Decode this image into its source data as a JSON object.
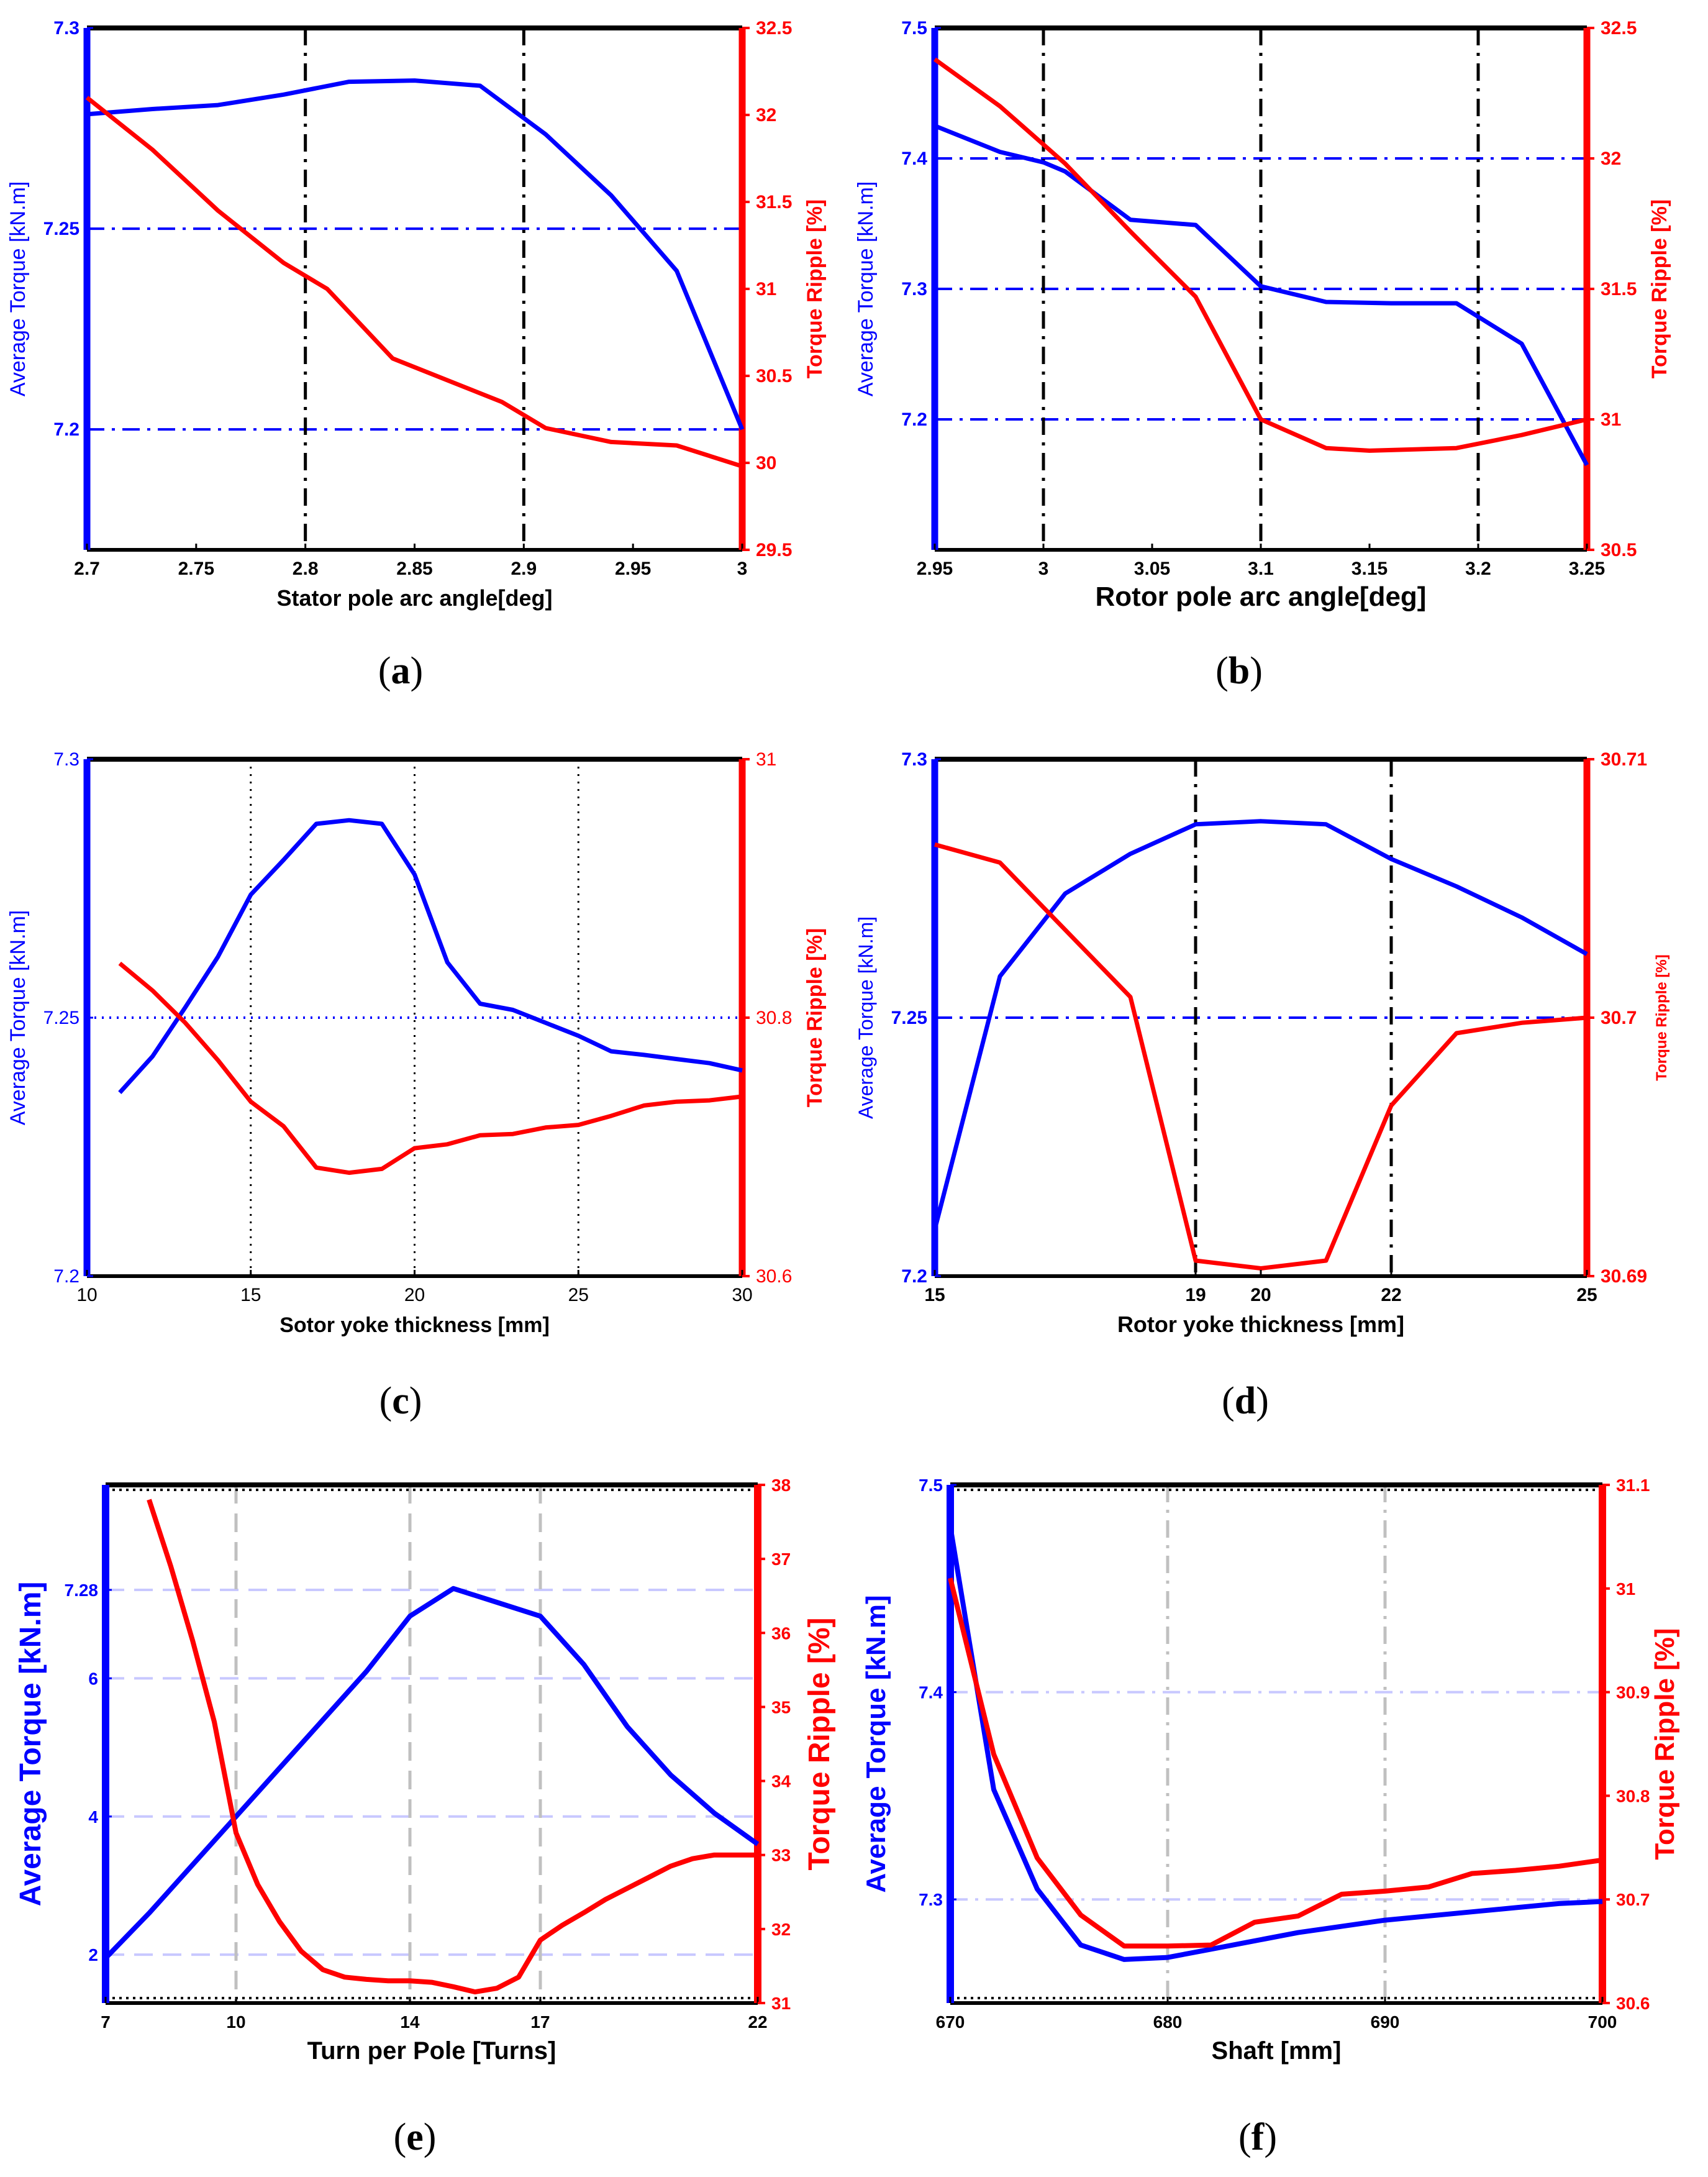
{
  "colors": {
    "left": "#0000ff",
    "right": "#ff0000",
    "frame": "#000000",
    "light": "#c8c8ff",
    "lightgray": "#c0c0c0"
  },
  "chart_data": [
    {
      "type": "line",
      "panel": "(a)",
      "xlabel": "Stator pole arc angle[deg]",
      "ylabel_left": "Average Torque [kN.m]",
      "ylabel_right": "Torque Ripple [%]",
      "xlim": [
        2.7,
        3
      ],
      "ylim_left": [
        7.17,
        7.3
      ],
      "ylim_right": [
        29.5,
        32.5
      ],
      "xticks": [
        2.7,
        2.75,
        2.8,
        2.85,
        2.9,
        2.95,
        3
      ],
      "xtick_labels": [
        "2.7",
        "2.75",
        "2.8",
        "2.85",
        "2.9",
        "2.95",
        "3"
      ],
      "yticks_left": [
        7.2,
        7.25,
        7.3
      ],
      "ytick_labels_left": [
        "7.2",
        "7.25",
        "7.3"
      ],
      "yticks_right": [
        29.5,
        30,
        30.5,
        31,
        31.5,
        32,
        32.5
      ],
      "ytick_labels_right": [
        "29.5",
        "30",
        "30.5",
        "31",
        "31.5",
        "32",
        "32.5"
      ],
      "vlines": [
        2.8,
        2.9
      ],
      "vline_style": "dashdot-black",
      "hlines_left": [
        7.2,
        7.25
      ],
      "hline_style": "dashdot-blue",
      "series_left": {
        "name": "Average Torque",
        "x": [
          2.7,
          2.73,
          2.76,
          2.79,
          2.82,
          2.85,
          2.88,
          2.91,
          2.94,
          2.97,
          3.0
        ],
        "y": [
          7.2785,
          7.2798,
          7.2808,
          7.2834,
          7.2866,
          7.2869,
          7.2856,
          7.2735,
          7.2583,
          7.2395,
          7.2
        ]
      },
      "series_right": {
        "name": "Torque Ripple",
        "x": [
          2.7,
          2.73,
          2.76,
          2.79,
          2.81,
          2.84,
          2.87,
          2.89,
          2.91,
          2.94,
          2.97,
          3.0
        ],
        "y": [
          32.1,
          31.8,
          31.45,
          31.15,
          31.0,
          30.6,
          30.45,
          30.35,
          30.2,
          30.12,
          30.1,
          29.98
        ]
      }
    },
    {
      "type": "line",
      "panel": "(b)",
      "xlabel": "Rotor pole arc angle[deg]",
      "ylabel_left": "Average Torque [kN.m]",
      "ylabel_right": "Torque Ripple [%]",
      "xlim": [
        2.95,
        3.25
      ],
      "ylim_left": [
        7.1,
        7.5
      ],
      "ylim_right": [
        30.5,
        32.5
      ],
      "xticks": [
        2.95,
        3,
        3.05,
        3.1,
        3.15,
        3.2,
        3.25
      ],
      "xtick_labels": [
        "2.95",
        "3",
        "3.05",
        "3.1",
        "3.15",
        "3.2",
        "3.25"
      ],
      "yticks_left": [
        7.2,
        7.3,
        7.4,
        7.5
      ],
      "ytick_labels_left": [
        "7.2",
        "7.3",
        "7.4",
        "7.5"
      ],
      "yticks_right": [
        30.5,
        31,
        31.5,
        32,
        32.5
      ],
      "ytick_labels_right": [
        "30.5",
        "31",
        "31.5",
        "32",
        "32.5"
      ],
      "vlines": [
        3.0,
        3.1,
        3.2
      ],
      "vline_style": "dashdot-black",
      "hlines_left": [
        7.2,
        7.3,
        7.4
      ],
      "hline_style": "dashdot-blue",
      "series_left": {
        "name": "Average Torque",
        "x": [
          2.95,
          2.98,
          3.0,
          3.01,
          3.04,
          3.07,
          3.1,
          3.13,
          3.16,
          3.19,
          3.22,
          3.25
        ],
        "y": [
          7.425,
          7.405,
          7.397,
          7.39,
          7.353,
          7.349,
          7.302,
          7.29,
          7.289,
          7.289,
          7.258,
          7.165
        ]
      },
      "series_right": {
        "name": "Torque Ripple",
        "x": [
          2.95,
          2.98,
          3.01,
          3.04,
          3.07,
          3.1,
          3.13,
          3.15,
          3.19,
          3.22,
          3.25
        ],
        "y": [
          32.38,
          32.2,
          31.98,
          31.72,
          31.47,
          31.0,
          30.89,
          30.88,
          30.89,
          30.94,
          31.0
        ]
      }
    },
    {
      "type": "line",
      "panel": "(c)",
      "xlabel": "Sotor yoke thickness [mm]",
      "ylabel_left": "Average Torque [kN.m]",
      "ylabel_right": "Torque Ripple [%]",
      "xlim": [
        10,
        30
      ],
      "ylim_left": [
        7.2,
        7.3
      ],
      "ylim_right": [
        30.6,
        31
      ],
      "xticks": [
        10,
        15,
        20,
        25,
        30
      ],
      "xtick_labels": [
        "10",
        "15",
        "20",
        "25",
        "30"
      ],
      "yticks_left": [
        7.2,
        7.25,
        7.3
      ],
      "ytick_labels_left": [
        "7.2",
        "7.25",
        "7.3"
      ],
      "yticks_right": [
        30.6,
        30.8,
        31
      ],
      "ytick_labels_right": [
        "30.6",
        "30.8",
        "31"
      ],
      "vlines": [
        15,
        20,
        25
      ],
      "vline_style": "dotted-black",
      "hlines_left": [
        7.25
      ],
      "hline_style": "dotted-blue",
      "series_left": {
        "name": "Average Torque",
        "x": [
          11,
          12,
          13,
          14,
          15,
          16,
          17,
          18,
          19,
          20,
          21,
          22,
          23,
          24,
          25,
          26,
          27,
          28,
          29,
          30
        ],
        "y": [
          7.2355,
          7.2425,
          7.252,
          7.2618,
          7.2738,
          7.2805,
          7.2875,
          7.2882,
          7.2875,
          7.2777,
          7.2607,
          7.2527,
          7.2515,
          7.249,
          7.2465,
          7.2435,
          7.2428,
          7.242,
          7.2412,
          7.2398
        ]
      },
      "series_right": {
        "name": "Torque Ripple",
        "x": [
          11,
          12,
          13,
          14,
          15,
          16,
          17,
          18,
          19,
          20,
          21,
          22,
          23,
          24,
          25,
          26,
          27,
          28,
          29,
          30
        ],
        "y": [
          30.842,
          30.821,
          30.796,
          30.767,
          30.735,
          30.716,
          30.684,
          30.68,
          30.683,
          30.699,
          30.702,
          30.709,
          30.71,
          30.715,
          30.717,
          30.724,
          30.732,
          30.735,
          30.736,
          30.739
        ]
      }
    },
    {
      "type": "line",
      "panel": "(d)",
      "xlabel": "Rotor yoke thickness [mm]",
      "ylabel_left": "Average Torque [kN.m]",
      "ylabel_right": "Torque Ripple [%]",
      "xlim": [
        15,
        25
      ],
      "ylim_left": [
        7.2,
        7.3
      ],
      "ylim_right": [
        30.69,
        30.71
      ],
      "xticks": [
        15,
        19,
        20,
        22,
        25
      ],
      "xtick_labels": [
        "15",
        "19",
        "20",
        "22",
        "25"
      ],
      "yticks_left": [
        7.2,
        7.25,
        7.3
      ],
      "ytick_labels_left": [
        "7.2",
        "7.25",
        "7.3"
      ],
      "yticks_right": [
        30.69,
        30.7,
        30.71
      ],
      "ytick_labels_right": [
        "30.69",
        "30.7",
        "30.71"
      ],
      "vlines": [
        19,
        22
      ],
      "vline_style": "dashdot-black",
      "hlines_left": [
        7.25
      ],
      "hline_style": "dashdot-blue",
      "series_left": {
        "name": "Average Torque",
        "x": [
          15,
          16,
          17,
          18,
          19,
          20,
          21,
          22,
          23,
          24,
          25
        ],
        "y": [
          7.209,
          7.258,
          7.274,
          7.2817,
          7.2874,
          7.288,
          7.2874,
          7.2807,
          7.2754,
          7.2694,
          7.2623
        ]
      },
      "series_right": {
        "name": "Torque Ripple",
        "x": [
          15,
          16,
          17,
          18,
          19,
          20,
          21,
          22,
          23,
          24,
          25
        ],
        "y": [
          30.7067,
          30.706,
          30.7034,
          30.7008,
          30.6906,
          30.6903,
          30.6906,
          30.6966,
          30.6994,
          30.6998,
          30.7
        ]
      }
    },
    {
      "type": "line",
      "panel": "(e)",
      "xlabel": "Turn per Pole [Turns]",
      "ylabel_left": "Average Torque [kN.m]",
      "ylabel_right": "Torque Ripple [%]",
      "xlim": [
        7,
        22
      ],
      "ylim_left": [
        1.3,
        8.8
      ],
      "ylim_right": [
        31,
        38
      ],
      "xticks": [
        7,
        10,
        14,
        17,
        22
      ],
      "xtick_labels": [
        "7",
        "10",
        "14",
        "17",
        "22"
      ],
      "yticks_left": [
        2,
        4,
        6,
        7.28
      ],
      "ytick_labels_left": [
        "2",
        "4",
        "6",
        "7.28"
      ],
      "yticks_right": [
        31,
        32,
        33,
        34,
        35,
        36,
        37,
        38
      ],
      "ytick_labels_right": [
        "31",
        "32",
        "33",
        "34",
        "35",
        "36",
        "37",
        "38"
      ],
      "vlines": [
        10,
        14,
        17
      ],
      "vline_style": "dashed-gray",
      "hlines_left": [
        2,
        4,
        6,
        7.28
      ],
      "hline_style": "dashed-lightblue",
      "series_left": {
        "name": "Average Torque",
        "x": [
          7,
          8,
          9,
          10,
          11,
          12,
          13,
          14,
          15,
          16,
          17,
          18,
          19,
          20,
          21,
          22
        ],
        "y": [
          1.95,
          2.6,
          3.3,
          4.0,
          4.7,
          5.4,
          6.1,
          6.9,
          7.3,
          7.1,
          6.9,
          6.2,
          5.3,
          4.6,
          4.05,
          3.6
        ]
      },
      "series_right": {
        "name": "Torque Ripple",
        "x": [
          8,
          8.5,
          9,
          9.5,
          10,
          10.5,
          11,
          11.5,
          12,
          12.5,
          13,
          13.5,
          14,
          14.5,
          15,
          15.5,
          16,
          16.5,
          17,
          17.5,
          18,
          18.5,
          19,
          19.5,
          20,
          20.5,
          21,
          21.5,
          22
        ],
        "y": [
          37.8,
          36.9,
          35.9,
          34.8,
          33.3,
          32.6,
          32.1,
          31.7,
          31.45,
          31.35,
          31.32,
          31.3,
          31.3,
          31.28,
          31.22,
          31.15,
          31.2,
          31.35,
          31.85,
          32.05,
          32.22,
          32.4,
          32.55,
          32.7,
          32.85,
          32.95,
          33.0,
          33.0,
          33.0
        ]
      }
    },
    {
      "type": "line",
      "panel": "(f)",
      "xlabel": "Shaft [mm]",
      "ylabel_left": "Average Torque [kN.m]",
      "ylabel_right": "Torque Ripple [%]",
      "xlim": [
        670,
        700
      ],
      "ylim_left": [
        7.25,
        7.5
      ],
      "ylim_right": [
        30.6,
        31.1
      ],
      "xticks": [
        670,
        680,
        690,
        700
      ],
      "xtick_labels": [
        "670",
        "680",
        "690",
        "700"
      ],
      "yticks_left": [
        7.3,
        7.4,
        7.5
      ],
      "ytick_labels_left": [
        "7.3",
        "7.4",
        "7.5"
      ],
      "yticks_right": [
        30.6,
        30.7,
        30.8,
        30.9,
        31,
        31.1
      ],
      "ytick_labels_right": [
        "30.6",
        "30.7",
        "30.8",
        "30.9",
        "31",
        "31.1"
      ],
      "vlines": [
        680,
        690
      ],
      "vline_style": "dashdot-gray",
      "hlines_left": [
        7.3,
        7.4
      ],
      "hline_style": "dashdot-lightblue",
      "series_left": {
        "name": "Average Torque",
        "x": [
          670,
          672,
          674,
          676,
          678,
          680,
          682,
          684,
          686,
          688,
          690,
          692,
          694,
          696,
          698,
          700
        ],
        "y": [
          7.48,
          7.353,
          7.305,
          7.278,
          7.271,
          7.272,
          7.276,
          7.28,
          7.284,
          7.287,
          7.29,
          7.292,
          7.294,
          7.296,
          7.298,
          7.299
        ]
      },
      "series_right": {
        "name": "Torque Ripple",
        "x": [
          670,
          672,
          674,
          676,
          678,
          680,
          682,
          684,
          686,
          688,
          690,
          692,
          694,
          696,
          698,
          700
        ],
        "y": [
          31.01,
          30.84,
          30.74,
          30.685,
          30.655,
          30.655,
          30.656,
          30.678,
          30.684,
          30.705,
          30.708,
          30.712,
          30.725,
          30.728,
          30.732,
          30.738
        ]
      }
    }
  ]
}
